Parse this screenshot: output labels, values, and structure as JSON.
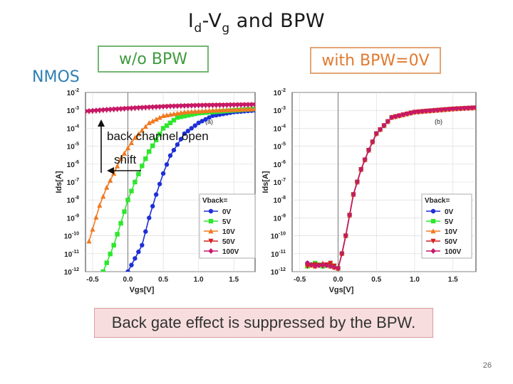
{
  "slide": {
    "title_main": "I",
    "title_sub1": "d",
    "title_mid": "-V",
    "title_sub2": "g",
    "title_end": " and BPW",
    "left_box": "w/o  BPW",
    "right_box": "with  BPW=0V",
    "device_label": "NMOS",
    "conclusion": "Back gate effect is suppressed by the BPW.",
    "page_number": "26"
  },
  "colors": {
    "0V": "#1f2fd6",
    "5V": "#2ee62e",
    "10V": "#ef7a22",
    "50V": "#d42020",
    "100V": "#c7186a"
  },
  "chart_data": [
    {
      "type": "line",
      "panel_label": "(a)",
      "xlabel": "Vgs[V]",
      "ylabel": "Ids[A]",
      "xlim": [
        -0.6,
        1.8
      ],
      "ylim": [
        1e-12,
        0.01
      ],
      "y_scale": "log",
      "x_ticks": [
        "-0.5",
        "0.0",
        "0.5",
        "1.0",
        "1.5"
      ],
      "y_ticks": [
        {
          "base": "10",
          "exp": "-2"
        },
        {
          "base": "10",
          "exp": "-3"
        },
        {
          "base": "10",
          "exp": "-4"
        },
        {
          "base": "10",
          "exp": "-5"
        },
        {
          "base": "10",
          "exp": "-6"
        },
        {
          "base": "10",
          "exp": "-7"
        },
        {
          "base": "10",
          "exp": "-8"
        },
        {
          "base": "10",
          "exp": "-9"
        },
        {
          "base": "10",
          "exp": "-10"
        },
        {
          "base": "10",
          "exp": "-11"
        },
        {
          "base": "10",
          "exp": "-12"
        }
      ],
      "legend_title": "Vback=",
      "legend_position": "bottom-right",
      "annotations": [
        "back channel open",
        "shift"
      ],
      "series": [
        {
          "name": "0V",
          "marker": "circle",
          "x": [
            0.0,
            0.2,
            0.3,
            0.4,
            0.5,
            0.6,
            0.8,
            1.0,
            1.2,
            1.5,
            1.8
          ],
          "y": [
            1e-12,
            3e-11,
            1e-09,
            2e-08,
            3e-07,
            3e-06,
            5e-05,
            0.0002,
            0.0005,
            0.0008,
            0.001
          ]
        },
        {
          "name": "5V",
          "marker": "square",
          "x": [
            -0.35,
            -0.2,
            -0.1,
            0.0,
            0.1,
            0.2,
            0.3,
            0.5,
            0.7,
            1.0,
            1.5,
            1.8
          ],
          "y": [
            1e-12,
            3e-11,
            5e-10,
            1e-08,
            1e-07,
            8e-07,
            5e-06,
            0.0001,
            0.0004,
            0.0007,
            0.001,
            0.0012
          ]
        },
        {
          "name": "10V",
          "marker": "triangle-up",
          "x": [
            -0.55,
            -0.4,
            -0.3,
            -0.2,
            -0.1,
            0.0,
            0.1,
            0.3,
            0.5,
            0.8,
            1.2,
            1.8
          ],
          "y": [
            5e-11,
            5e-09,
            5e-08,
            3e-07,
            2e-06,
            8e-06,
            3e-05,
            0.0002,
            0.0005,
            0.0008,
            0.001,
            0.0012
          ]
        },
        {
          "name": "50V",
          "marker": "triangle-down",
          "x": [
            -0.6,
            -0.3,
            0.0,
            0.3,
            0.6,
            1.0,
            1.8
          ],
          "y": [
            0.0008,
            0.001,
            0.0012,
            0.0014,
            0.0016,
            0.0018,
            0.002
          ]
        },
        {
          "name": "100V",
          "marker": "diamond",
          "x": [
            -0.6,
            -0.3,
            0.0,
            0.3,
            0.6,
            1.0,
            1.8
          ],
          "y": [
            0.0009,
            0.0011,
            0.0013,
            0.0015,
            0.0017,
            0.0019,
            0.0021
          ]
        }
      ]
    },
    {
      "type": "line",
      "panel_label": "(b)",
      "xlabel": "Vgs[V]",
      "ylabel": "Ids[A]",
      "xlim": [
        -0.6,
        1.8
      ],
      "ylim": [
        1e-12,
        0.01
      ],
      "y_scale": "log",
      "x_ticks": [
        "-0.5",
        "0.0",
        "0.5",
        "1.0",
        "1.5"
      ],
      "y_ticks": [
        {
          "base": "10",
          "exp": "-2"
        },
        {
          "base": "10",
          "exp": "-3"
        },
        {
          "base": "10",
          "exp": "-4"
        },
        {
          "base": "10",
          "exp": "-5"
        },
        {
          "base": "10",
          "exp": "-6"
        },
        {
          "base": "10",
          "exp": "-7"
        },
        {
          "base": "10",
          "exp": "-8"
        },
        {
          "base": "10",
          "exp": "-9"
        },
        {
          "base": "10",
          "exp": "-10"
        },
        {
          "base": "10",
          "exp": "-11"
        },
        {
          "base": "10",
          "exp": "-12"
        }
      ],
      "legend_title": "Vback=",
      "legend_position": "bottom-right",
      "series": [
        {
          "name": "0V",
          "marker": "circle",
          "x": [
            -0.4,
            -0.3,
            -0.2,
            -0.1,
            0.0,
            0.05,
            0.1,
            0.2,
            0.3,
            0.4,
            0.5,
            0.7,
            1.0,
            1.5,
            1.8
          ],
          "y": [
            3e-12,
            2e-12,
            2.5e-12,
            2e-12,
            1.5e-12,
            1e-11,
            1e-10,
            2e-08,
            5e-07,
            6e-06,
            5e-05,
            0.0004,
            0.0008,
            0.0012,
            0.0014
          ]
        },
        {
          "name": "5V",
          "marker": "square",
          "x": [
            -0.4,
            -0.3,
            -0.2,
            -0.1,
            0.0,
            0.05,
            0.1,
            0.2,
            0.3,
            0.4,
            0.5,
            0.7,
            1.0,
            1.5,
            1.8
          ],
          "y": [
            2e-12,
            3e-12,
            2e-12,
            2.5e-12,
            1.5e-12,
            1e-11,
            1e-10,
            2e-08,
            5e-07,
            6e-06,
            5e-05,
            0.0004,
            0.0008,
            0.0012,
            0.0014
          ]
        },
        {
          "name": "10V",
          "marker": "triangle-up",
          "x": [
            -0.4,
            -0.3,
            -0.2,
            -0.1,
            0.0,
            0.05,
            0.1,
            0.2,
            0.3,
            0.4,
            0.5,
            0.7,
            1.0,
            1.5,
            1.8
          ],
          "y": [
            2.5e-12,
            2e-12,
            3e-12,
            2e-12,
            1.5e-12,
            1e-11,
            1e-10,
            2e-08,
            5e-07,
            6e-06,
            5e-05,
            0.0004,
            0.0008,
            0.0012,
            0.0014
          ]
        },
        {
          "name": "50V",
          "marker": "triangle-down",
          "x": [
            -0.4,
            -0.3,
            -0.2,
            -0.1,
            0.0,
            0.05,
            0.1,
            0.2,
            0.3,
            0.4,
            0.5,
            0.7,
            1.0,
            1.5,
            1.8
          ],
          "y": [
            2e-12,
            2.5e-12,
            2e-12,
            3e-12,
            1.5e-12,
            1e-11,
            1e-10,
            2e-08,
            5e-07,
            6e-06,
            5e-05,
            0.0004,
            0.0008,
            0.0012,
            0.0014
          ]
        },
        {
          "name": "100V",
          "marker": "diamond",
          "x": [
            -0.4,
            -0.3,
            -0.2,
            -0.1,
            0.0,
            0.05,
            0.1,
            0.2,
            0.3,
            0.4,
            0.5,
            0.7,
            1.0,
            1.5,
            1.8
          ],
          "y": [
            3e-12,
            2e-12,
            2.5e-12,
            2e-12,
            1.5e-12,
            1e-11,
            1e-10,
            2e-08,
            5e-07,
            6e-06,
            5e-05,
            0.0004,
            0.0008,
            0.0012,
            0.0014
          ]
        }
      ]
    }
  ]
}
